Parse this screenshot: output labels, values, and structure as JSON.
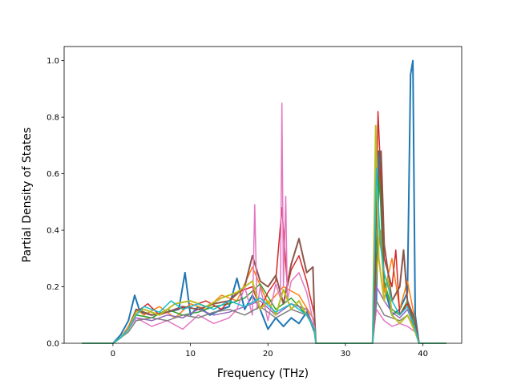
{
  "chart_data": {
    "type": "line",
    "title": "",
    "xlabel": "Frequency (THz)",
    "ylabel": "Partial Density of States",
    "xlim": [
      -6.3,
      45.0
    ],
    "ylim": [
      0.0,
      1.05
    ],
    "x_ticks": [
      0,
      10,
      20,
      30,
      40
    ],
    "y_ticks": [
      0.0,
      0.2,
      0.4,
      0.6,
      0.8,
      1.0
    ],
    "x_tick_labels": [
      "0",
      "10",
      "20",
      "30",
      "40"
    ],
    "y_tick_labels": [
      "0.0",
      "0.2",
      "0.4",
      "0.6",
      "0.8",
      "1.0"
    ],
    "grid": false,
    "legend": "none",
    "series": [
      {
        "color": "#1f77b4",
        "line_width": 2,
        "x": [
          -4,
          0,
          1,
          2,
          2.8,
          3.5,
          5,
          7,
          8.5,
          9.3,
          10,
          11,
          12.5,
          14,
          15,
          16,
          17,
          18,
          19,
          20,
          21,
          22,
          23,
          24,
          25,
          26,
          26.2,
          33.5,
          34,
          34.3,
          35,
          36,
          37,
          38,
          38.4,
          38.7,
          39,
          39.5,
          43
        ],
        "y": [
          0,
          0,
          0.03,
          0.08,
          0.17,
          0.11,
          0.1,
          0.11,
          0.12,
          0.25,
          0.1,
          0.13,
          0.1,
          0.12,
          0.13,
          0.23,
          0.12,
          0.17,
          0.12,
          0.05,
          0.09,
          0.06,
          0.09,
          0.07,
          0.11,
          0.04,
          0,
          0,
          0.15,
          0.68,
          0.2,
          0.1,
          0.12,
          0.18,
          0.95,
          1.0,
          0.1,
          0,
          0
        ]
      },
      {
        "color": "#ff7f0e",
        "x": [
          -4,
          0,
          1,
          2,
          3,
          4,
          6,
          8,
          10,
          12,
          14,
          16,
          18,
          20,
          22,
          24,
          26,
          26.2,
          33.5,
          34,
          34.5,
          35,
          36,
          37,
          38,
          39,
          39.5,
          43
        ],
        "y": [
          0,
          0,
          0.02,
          0.06,
          0.12,
          0.1,
          0.13,
          0.09,
          0.14,
          0.12,
          0.17,
          0.15,
          0.27,
          0.14,
          0.2,
          0.17,
          0.08,
          0,
          0,
          0.25,
          0.4,
          0.18,
          0.3,
          0.12,
          0.22,
          0.08,
          0,
          0
        ]
      },
      {
        "color": "#2ca02c",
        "x": [
          -4,
          0,
          1,
          2,
          3,
          5,
          7,
          9,
          11,
          13,
          15,
          17,
          19,
          21,
          23,
          25,
          26,
          26.2,
          33.5,
          34,
          34.4,
          35,
          36,
          37,
          38,
          39,
          39.5,
          43
        ],
        "y": [
          0,
          0,
          0.02,
          0.05,
          0.1,
          0.09,
          0.12,
          0.1,
          0.11,
          0.13,
          0.14,
          0.16,
          0.21,
          0.12,
          0.16,
          0.1,
          0.06,
          0,
          0,
          0.3,
          0.6,
          0.22,
          0.12,
          0.1,
          0.15,
          0.06,
          0,
          0
        ]
      },
      {
        "color": "#d62728",
        "x": [
          -4,
          0,
          1,
          2,
          3,
          4.5,
          6,
          8,
          10,
          12,
          14,
          16,
          18,
          19,
          20,
          21,
          21.8,
          22.5,
          23,
          24,
          25,
          26,
          26.2,
          33.5,
          33.8,
          34.2,
          35,
          36,
          36.5,
          37,
          38,
          39,
          39.5,
          43
        ],
        "y": [
          0,
          0,
          0.02,
          0.05,
          0.11,
          0.14,
          0.1,
          0.12,
          0.13,
          0.15,
          0.12,
          0.18,
          0.2,
          0.12,
          0.18,
          0.22,
          0.48,
          0.2,
          0.26,
          0.31,
          0.22,
          0.1,
          0,
          0,
          0.2,
          0.82,
          0.3,
          0.2,
          0.33,
          0.1,
          0.14,
          0.05,
          0,
          0
        ]
      },
      {
        "color": "#9467bd",
        "x": [
          -4,
          0,
          1,
          2,
          3,
          5,
          7,
          9,
          11,
          13,
          15,
          17,
          19,
          21,
          23,
          25,
          26,
          26.2,
          33.5,
          34,
          35,
          36,
          37,
          38,
          39,
          39.5,
          43
        ],
        "y": [
          0,
          0,
          0.02,
          0.05,
          0.09,
          0.08,
          0.1,
          0.09,
          0.12,
          0.1,
          0.11,
          0.13,
          0.15,
          0.1,
          0.14,
          0.12,
          0.05,
          0,
          0,
          0.2,
          0.15,
          0.11,
          0.09,
          0.12,
          0.05,
          0,
          0
        ]
      },
      {
        "color": "#8c564b",
        "line_width": 2,
        "x": [
          -4,
          0,
          1,
          2,
          3,
          5,
          7,
          9,
          11,
          13,
          15,
          17,
          18,
          19,
          20,
          21,
          22,
          23,
          24,
          25,
          25.8,
          26,
          26.2,
          33.5,
          34,
          34.6,
          35,
          36,
          37,
          37.5,
          38,
          39,
          39.5,
          43
        ],
        "y": [
          0,
          0,
          0.02,
          0.05,
          0.12,
          0.1,
          0.11,
          0.13,
          0.12,
          0.14,
          0.15,
          0.2,
          0.31,
          0.22,
          0.2,
          0.24,
          0.14,
          0.28,
          0.37,
          0.25,
          0.27,
          0.1,
          0,
          0,
          0.5,
          0.68,
          0.35,
          0.15,
          0.2,
          0.33,
          0.15,
          0.08,
          0,
          0
        ]
      },
      {
        "color": "#e377c2",
        "x": [
          -4,
          0,
          1,
          2,
          3,
          5,
          7,
          9,
          11,
          13,
          15,
          16,
          17,
          18,
          18.3,
          18.6,
          19,
          20,
          21,
          21.6,
          21.8,
          22,
          22.3,
          22.5,
          23,
          24,
          25,
          26,
          26.2,
          33.5,
          34,
          35,
          36,
          37,
          38,
          39,
          39.5,
          43
        ],
        "y": [
          0,
          0,
          0.02,
          0.05,
          0.09,
          0.06,
          0.08,
          0.05,
          0.1,
          0.07,
          0.09,
          0.12,
          0.2,
          0.1,
          0.49,
          0.12,
          0.2,
          0.08,
          0.21,
          0.16,
          0.85,
          0.2,
          0.52,
          0.15,
          0.22,
          0.25,
          0.18,
          0.06,
          0,
          0,
          0.12,
          0.08,
          0.06,
          0.07,
          0.06,
          0.04,
          0,
          0
        ]
      },
      {
        "color": "#7f7f7f",
        "x": [
          -4,
          0,
          1,
          2,
          3,
          5,
          7,
          9,
          11,
          13,
          15,
          17,
          19,
          21,
          23,
          25,
          26,
          26.2,
          33.5,
          34,
          35,
          36,
          37,
          38,
          39,
          39.5,
          43
        ],
        "y": [
          0,
          0,
          0.02,
          0.04,
          0.08,
          0.09,
          0.08,
          0.1,
          0.09,
          0.11,
          0.12,
          0.1,
          0.13,
          0.09,
          0.12,
          0.1,
          0.05,
          0,
          0,
          0.15,
          0.1,
          0.09,
          0.08,
          0.1,
          0.05,
          0,
          0
        ]
      },
      {
        "color": "#bcbd22",
        "line_width": 2,
        "x": [
          -4,
          0,
          1,
          2,
          3,
          4,
          6,
          8,
          10,
          12,
          14,
          16,
          17,
          18,
          19,
          20,
          21,
          22,
          23,
          24,
          25,
          26,
          26.2,
          33.5,
          33.9,
          34.3,
          35,
          35.5,
          36,
          37,
          38,
          39,
          39.5,
          43
        ],
        "y": [
          0,
          0,
          0.02,
          0.05,
          0.11,
          0.12,
          0.1,
          0.14,
          0.15,
          0.13,
          0.16,
          0.18,
          0.2,
          0.22,
          0.12,
          0.15,
          0.1,
          0.19,
          0.12,
          0.15,
          0.1,
          0.05,
          0,
          0,
          0.77,
          0.3,
          0.15,
          0.23,
          0.1,
          0.07,
          0.1,
          0.04,
          0,
          0
        ]
      },
      {
        "color": "#17becf",
        "x": [
          -4,
          0,
          1,
          2,
          3,
          4,
          6,
          7.5,
          9,
          11,
          13,
          15,
          17,
          19,
          21,
          23,
          25,
          26,
          26.2,
          33.5,
          34,
          34.5,
          35,
          36,
          37,
          38,
          39,
          39.5,
          43
        ],
        "y": [
          0,
          0,
          0.02,
          0.05,
          0.1,
          0.13,
          0.11,
          0.15,
          0.12,
          0.14,
          0.12,
          0.15,
          0.13,
          0.16,
          0.11,
          0.14,
          0.1,
          0.05,
          0,
          0,
          0.62,
          0.35,
          0.25,
          0.15,
          0.1,
          0.13,
          0.05,
          0,
          0
        ]
      }
    ]
  }
}
